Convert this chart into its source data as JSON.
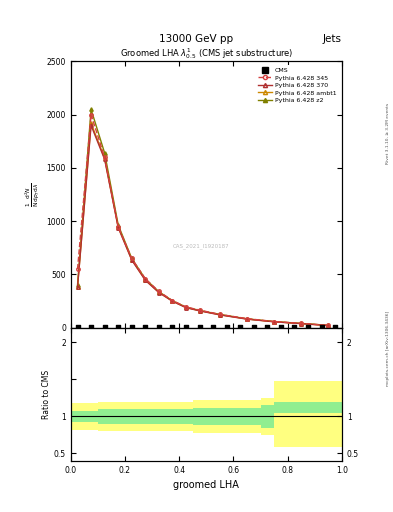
{
  "title_top": "13000 GeV pp",
  "title_right": "Jets",
  "plot_title": "Groomed LHA $\\lambda^{1}_{0.5}$ (CMS jet substructure)",
  "xlabel": "groomed LHA",
  "ylabel_ratio": "Ratio to CMS",
  "watermark": "CAS_2021_I1920187",
  "rivet_label": "Rivet 3.1.10, ≥ 3.2M events",
  "arxiv_label": "mcplots.cern.ch [arXiv:1306.3436]",
  "py345_x": [
    0.025,
    0.075,
    0.125,
    0.175,
    0.225,
    0.275,
    0.325,
    0.375,
    0.425,
    0.475,
    0.55,
    0.65,
    0.75,
    0.85,
    0.95
  ],
  "py345_y": [
    550,
    2000,
    1600,
    950,
    650,
    460,
    340,
    255,
    195,
    165,
    125,
    85,
    58,
    40,
    22
  ],
  "py370_x": [
    0.025,
    0.075,
    0.125,
    0.175,
    0.225,
    0.275,
    0.325,
    0.375,
    0.425,
    0.475,
    0.55,
    0.65,
    0.75,
    0.85,
    0.95
  ],
  "py370_y": [
    380,
    1900,
    1580,
    940,
    635,
    445,
    330,
    248,
    188,
    158,
    120,
    80,
    55,
    38,
    20
  ],
  "pyambt1_x": [
    0.025,
    0.075,
    0.125,
    0.175,
    0.225,
    0.275,
    0.325,
    0.375,
    0.425,
    0.475,
    0.55,
    0.65,
    0.75,
    0.85,
    0.95
  ],
  "pyambt1_y": [
    380,
    1920,
    1590,
    945,
    638,
    448,
    332,
    250,
    190,
    160,
    122,
    82,
    56,
    39,
    21
  ],
  "pyz2_x": [
    0.025,
    0.075,
    0.125,
    0.175,
    0.225,
    0.275,
    0.325,
    0.375,
    0.425,
    0.475,
    0.55,
    0.65,
    0.75,
    0.85,
    0.95
  ],
  "pyz2_y": [
    400,
    2050,
    1640,
    965,
    650,
    458,
    338,
    253,
    193,
    162,
    124,
    83,
    57,
    40,
    22
  ],
  "cms_x": [
    0.025,
    0.075,
    0.125,
    0.175,
    0.225,
    0.275,
    0.325,
    0.375,
    0.425,
    0.475,
    0.525,
    0.575,
    0.625,
    0.675,
    0.725,
    0.775,
    0.825,
    0.875,
    0.925,
    0.975
  ],
  "cms_y": [
    2,
    2,
    2,
    2,
    2,
    2,
    2,
    2,
    2,
    2,
    2,
    2,
    2,
    2,
    2,
    2,
    2,
    2,
    2,
    2
  ],
  "ratio_x_edges": [
    0.0,
    0.05,
    0.1,
    0.15,
    0.2,
    0.25,
    0.3,
    0.35,
    0.4,
    0.45,
    0.5,
    0.55,
    0.6,
    0.65,
    0.7,
    0.75,
    1.0
  ],
  "ratio_green_lo": [
    0.92,
    0.92,
    0.9,
    0.9,
    0.9,
    0.9,
    0.9,
    0.9,
    0.9,
    0.88,
    0.88,
    0.88,
    0.88,
    0.88,
    0.85,
    1.05,
    1.05
  ],
  "ratio_green_hi": [
    1.08,
    1.08,
    1.1,
    1.1,
    1.1,
    1.1,
    1.1,
    1.1,
    1.1,
    1.12,
    1.12,
    1.12,
    1.12,
    1.12,
    1.15,
    1.2,
    1.2
  ],
  "ratio_yellow_lo": [
    0.82,
    0.82,
    0.8,
    0.8,
    0.8,
    0.8,
    0.8,
    0.8,
    0.8,
    0.78,
    0.78,
    0.78,
    0.78,
    0.78,
    0.75,
    0.58,
    0.58
  ],
  "ratio_yellow_hi": [
    1.18,
    1.18,
    1.2,
    1.2,
    1.2,
    1.2,
    1.2,
    1.2,
    1.2,
    1.22,
    1.22,
    1.22,
    1.22,
    1.22,
    1.25,
    1.48,
    1.48
  ],
  "ylim_main": [
    0,
    2500
  ],
  "ylim_ratio": [
    0.4,
    2.2
  ],
  "xlim": [
    0.0,
    1.0
  ],
  "yticks_main": [
    0,
    500,
    1000,
    1500,
    2000,
    2500
  ],
  "color_345": "#d44040",
  "color_370": "#b03030",
  "color_ambt1": "#cc8800",
  "color_z2": "#808000",
  "color_cms": "black",
  "color_green": "#90ee90",
  "color_yellow": "#ffff80"
}
